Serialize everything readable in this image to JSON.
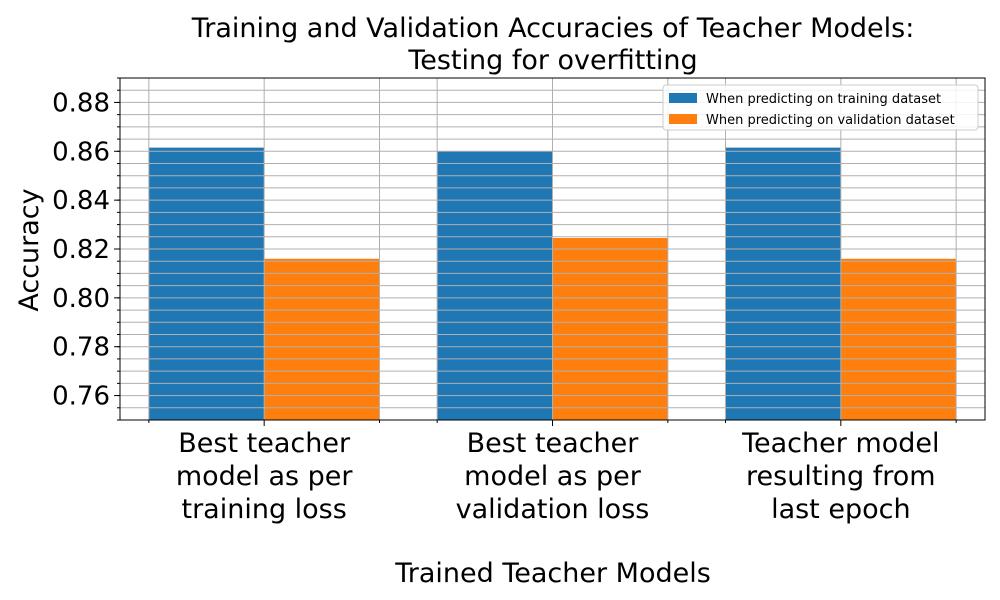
{
  "chart_data": {
    "type": "bar",
    "title": [
      "Training and Validation Accuracies of Teacher Models:",
      "Testing for overfitting"
    ],
    "xlabel": "Trained Teacher Models",
    "ylabel": "Accuracy",
    "categories": [
      [
        "Best teacher",
        "model as per",
        "training loss"
      ],
      [
        "Best teacher",
        "model as per",
        "validation loss"
      ],
      [
        "Teacher model",
        "resulting from",
        "last epoch"
      ]
    ],
    "series": [
      {
        "name": "When predicting on training dataset",
        "color": "#1f77b4",
        "values": [
          0.8615,
          0.86,
          0.8615
        ]
      },
      {
        "name": "When predicting on validation dataset",
        "color": "#ff7f0e",
        "values": [
          0.816,
          0.8245,
          0.816
        ]
      }
    ],
    "ylim": [
      0.75,
      0.89
    ],
    "yticks_major": [
      0.76,
      0.78,
      0.8,
      0.82,
      0.84,
      0.86,
      0.88
    ],
    "ytick_labels": [
      "0.76",
      "0.78",
      "0.80",
      "0.82",
      "0.84",
      "0.86",
      "0.88"
    ],
    "y_minor_step": 0.005,
    "grid": true,
    "legend_position": "top-right"
  }
}
